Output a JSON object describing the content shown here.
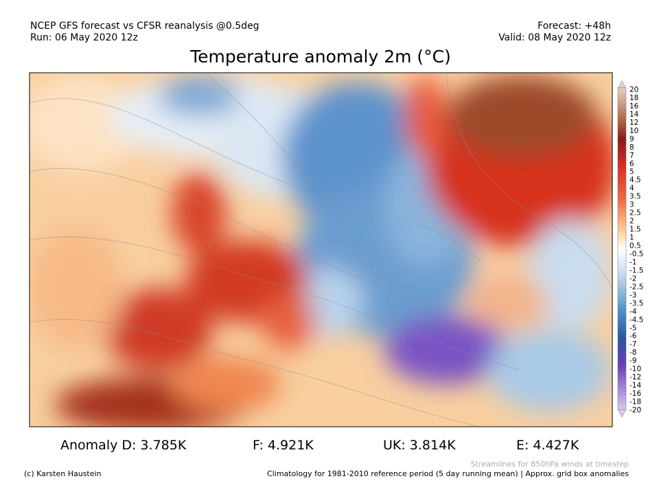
{
  "header": {
    "left": [
      "NCEP GFS forecast vs CFSR reanalysis @0.5deg",
      "Run: 06 May 2020 12z"
    ],
    "right": [
      "Forecast: +48h",
      "Valid: 08 May 2020 12z"
    ]
  },
  "title": "Temperature anomaly 2m (°C)",
  "colorbar": {
    "labels": [
      "20",
      "18",
      "16",
      "14",
      "12",
      "10",
      "9",
      "8",
      "7",
      "6",
      "5",
      "4.5",
      "4",
      "3.5",
      "3",
      "2.5",
      "2",
      "1.5",
      "1",
      "0.5",
      "-0.5",
      "-1",
      "-1.5",
      "-2",
      "-2.5",
      "-3",
      "-3.5",
      "-4",
      "-4.5",
      "-5",
      "-6",
      "-7",
      "-8",
      "-9",
      "-10",
      "-12",
      "-14",
      "-16",
      "-18",
      "-20"
    ]
  },
  "stats": [
    "Anomaly D: 3.785K",
    "F: 4.921K",
    "UK: 3.814K",
    "E: 4.427K"
  ],
  "footer": {
    "note": "Streamlines for 850hPa winds at timestep",
    "credit": "(c) Karsten Haustein",
    "climatology": "Climatology for 1981-2010 reference period (5 day running mean) | Approx. grid box anomalies"
  }
}
